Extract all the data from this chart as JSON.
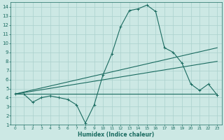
{
  "title": "",
  "xlabel": "Humidex (Indice chaleur)",
  "bg_color": "#cce8e4",
  "grid_color": "#aad0cc",
  "line_color": "#1a6b60",
  "xlim": [
    -0.5,
    23.5
  ],
  "ylim": [
    1,
    14.5
  ],
  "xticks": [
    0,
    1,
    2,
    3,
    4,
    5,
    6,
    7,
    8,
    9,
    10,
    11,
    12,
    13,
    14,
    15,
    16,
    17,
    18,
    19,
    20,
    21,
    22,
    23
  ],
  "yticks": [
    1,
    2,
    3,
    4,
    5,
    6,
    7,
    8,
    9,
    10,
    11,
    12,
    13,
    14
  ],
  "line1_x": [
    0,
    1,
    2,
    3,
    4,
    5,
    6,
    7,
    8,
    9,
    10,
    11,
    12,
    13,
    14,
    15,
    16,
    17,
    18,
    19,
    20,
    21,
    22,
    23
  ],
  "line1_y": [
    4.4,
    4.4,
    3.5,
    4.0,
    4.2,
    4.0,
    3.8,
    3.2,
    1.2,
    3.2,
    6.5,
    8.8,
    11.8,
    13.6,
    13.8,
    14.2,
    13.5,
    9.5,
    9.0,
    7.8,
    5.5,
    4.8,
    5.5,
    4.3
  ],
  "line2_x": [
    0,
    23
  ],
  "line2_y": [
    4.4,
    9.5
  ],
  "line3_x": [
    0,
    23
  ],
  "line3_y": [
    4.4,
    8.0
  ],
  "line4_x": [
    0,
    23
  ],
  "line4_y": [
    4.4,
    4.4
  ]
}
